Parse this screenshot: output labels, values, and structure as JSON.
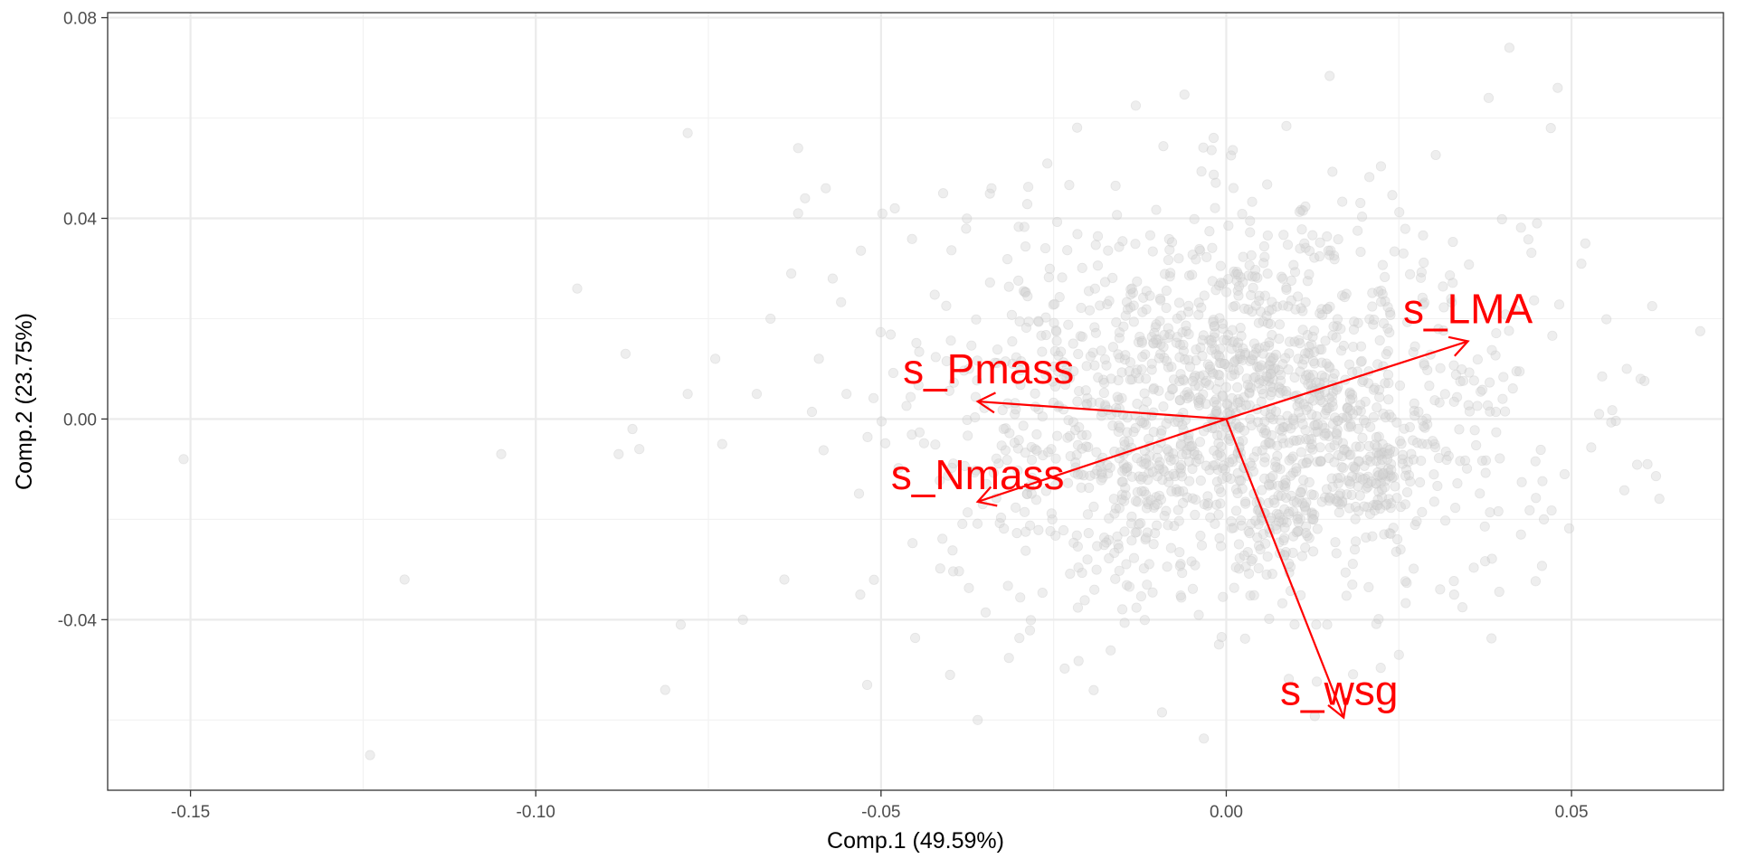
{
  "chart_data": {
    "type": "scatter",
    "title": "",
    "xlabel": "Comp.1 (49.59%)",
    "ylabel": "Comp.2 (23.75%)",
    "xlim": [
      -0.162,
      0.072
    ],
    "ylim": [
      -0.074,
      0.081
    ],
    "x_ticks": [
      {
        "value": -0.15,
        "label": "-0.15"
      },
      {
        "value": -0.1,
        "label": "-0.10"
      },
      {
        "value": -0.05,
        "label": "-0.05"
      },
      {
        "value": 0.0,
        "label": "0.00"
      },
      {
        "value": 0.05,
        "label": "0.05"
      }
    ],
    "y_ticks": [
      {
        "value": -0.04,
        "label": "-0.04"
      },
      {
        "value": 0.0,
        "label": "0.00"
      },
      {
        "value": 0.04,
        "label": "0.04"
      },
      {
        "value": 0.08,
        "label": "0.08"
      }
    ],
    "grid": true,
    "legend": "none",
    "point_color": "#d3d3d3",
    "arrow_color": "#ff0000",
    "loadings": [
      {
        "name": "s_LMA",
        "x": 0.035,
        "y": 0.0155
      },
      {
        "name": "s_Pmass",
        "x": -0.036,
        "y": 0.0035
      },
      {
        "name": "s_Nmass",
        "x": -0.036,
        "y": -0.0165
      },
      {
        "name": "s_wsg",
        "x": 0.017,
        "y": -0.0595
      }
    ],
    "outlier_points": [
      [
        -0.151,
        -0.008
      ],
      [
        -0.124,
        -0.067
      ],
      [
        -0.119,
        -0.032
      ],
      [
        -0.105,
        -0.007
      ],
      [
        -0.094,
        0.026
      ],
      [
        -0.087,
        0.013
      ],
      [
        -0.086,
        -0.002
      ],
      [
        -0.088,
        -0.007
      ],
      [
        -0.085,
        -0.006
      ],
      [
        -0.078,
        0.057
      ],
      [
        -0.079,
        -0.041
      ],
      [
        -0.078,
        0.005
      ],
      [
        -0.074,
        0.012
      ],
      [
        -0.073,
        -0.005
      ],
      [
        -0.07,
        -0.04
      ],
      [
        -0.068,
        0.005
      ],
      [
        -0.066,
        0.02
      ],
      [
        -0.063,
        0.029
      ],
      [
        -0.064,
        -0.032
      ],
      [
        -0.062,
        0.041
      ],
      [
        -0.061,
        0.044
      ],
      [
        -0.058,
        0.046
      ],
      [
        -0.057,
        0.028
      ],
      [
        -0.062,
        0.054
      ],
      [
        -0.059,
        0.012
      ],
      [
        -0.055,
        0.005
      ],
      [
        -0.053,
        -0.035
      ],
      [
        -0.052,
        -0.053
      ],
      [
        -0.048,
        0.042
      ],
      [
        -0.041,
        0.045
      ],
      [
        -0.04,
        -0.051
      ],
      [
        -0.036,
        -0.06
      ],
      [
        -0.034,
        0.046
      ],
      [
        0.041,
        0.074
      ],
      [
        0.048,
        0.066
      ],
      [
        0.052,
        0.035
      ],
      [
        0.058,
        0.01
      ],
      [
        0.06,
        0.008
      ],
      [
        0.061,
        -0.009
      ],
      [
        0.054,
        0.001
      ],
      [
        0.047,
        0.058
      ],
      [
        0.049,
        -0.011
      ],
      [
        0.045,
        0.039
      ],
      [
        0.046,
        -0.02
      ],
      [
        0.033,
        -0.035
      ],
      [
        0.025,
        -0.047
      ],
      [
        0.038,
        0.064
      ]
    ]
  }
}
